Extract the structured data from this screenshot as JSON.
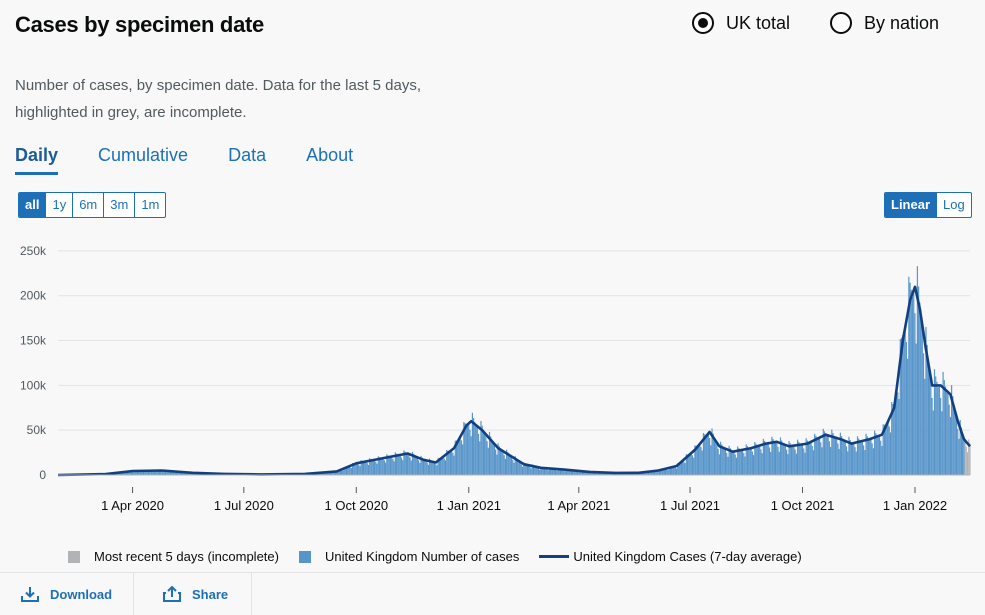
{
  "header": {
    "title": "Cases by specimen date"
  },
  "radios": [
    {
      "label": "UK total",
      "selected": true
    },
    {
      "label": "By nation",
      "selected": false
    }
  ],
  "description": "Number of cases, by specimen date. Data for the last 5 days, highlighted in grey, are incomplete.",
  "tabs": [
    "Daily",
    "Cumulative",
    "Data",
    "About"
  ],
  "range_buttons": [
    "all",
    "1y",
    "6m",
    "3m",
    "1m"
  ],
  "scale_buttons": [
    "Linear",
    "Log"
  ],
  "legend": {
    "incomplete": "Most recent 5 days (incomplete)",
    "bars": "United Kingdom Number of cases",
    "line": "United Kingdom Cases (7-day average)"
  },
  "footer": {
    "download": "Download",
    "share": "Share"
  },
  "colors": {
    "bars": "#5694ca",
    "line": "#12407f",
    "incomplete": "#b1b4b6",
    "accent": "#1d70b8"
  },
  "chart_data": {
    "type": "bar",
    "x_start": "2020-01-31",
    "x_end": "2022-02-15",
    "ylim": [
      0,
      270000
    ],
    "yticks": [
      0,
      50000,
      100000,
      150000,
      200000,
      250000
    ],
    "ytick_labels": [
      "0",
      "50k",
      "100k",
      "150k",
      "200k",
      "250k"
    ],
    "xtick_dates": [
      "2020-04-01",
      "2020-07-01",
      "2020-10-01",
      "2021-01-01",
      "2021-04-01",
      "2021-07-01",
      "2021-10-01",
      "2022-01-01"
    ],
    "xtick_labels": [
      "1 Apr 2020",
      "1 Jul 2020",
      "1 Oct 2020",
      "1 Jan 2021",
      "1 Apr 2021",
      "1 Jul 2021",
      "1 Oct 2021",
      "1 Jan 2022"
    ],
    "grid": true,
    "legend_position": "bottom",
    "series": [
      {
        "name": "United Kingdom Cases (7-day average)",
        "kind": "line",
        "points": [
          [
            "2020-01-31",
            0
          ],
          [
            "2020-03-10",
            1000
          ],
          [
            "2020-04-01",
            4500
          ],
          [
            "2020-04-25",
            5000
          ],
          [
            "2020-05-20",
            2500
          ],
          [
            "2020-06-15",
            1200
          ],
          [
            "2020-07-15",
            700
          ],
          [
            "2020-08-20",
            1200
          ],
          [
            "2020-09-15",
            4000
          ],
          [
            "2020-10-01",
            13000
          ],
          [
            "2020-10-20",
            18000
          ],
          [
            "2020-11-12",
            24000
          ],
          [
            "2020-11-25",
            17000
          ],
          [
            "2020-12-05",
            14000
          ],
          [
            "2020-12-20",
            30000
          ],
          [
            "2020-12-30",
            55000
          ],
          [
            "2021-01-03",
            60000
          ],
          [
            "2021-01-12",
            50000
          ],
          [
            "2021-01-25",
            30000
          ],
          [
            "2021-02-15",
            12000
          ],
          [
            "2021-03-01",
            8000
          ],
          [
            "2021-03-20",
            6000
          ],
          [
            "2021-04-10",
            3500
          ],
          [
            "2021-05-01",
            2300
          ],
          [
            "2021-05-20",
            2500
          ],
          [
            "2021-06-05",
            5000
          ],
          [
            "2021-06-20",
            10000
          ],
          [
            "2021-07-05",
            28000
          ],
          [
            "2021-07-17",
            48000
          ],
          [
            "2021-07-25",
            32000
          ],
          [
            "2021-08-05",
            26000
          ],
          [
            "2021-08-20",
            30000
          ],
          [
            "2021-09-01",
            35000
          ],
          [
            "2021-09-10",
            37000
          ],
          [
            "2021-09-20",
            32000
          ],
          [
            "2021-10-05",
            35000
          ],
          [
            "2021-10-20",
            45000
          ],
          [
            "2021-11-01",
            40000
          ],
          [
            "2021-11-10",
            35000
          ],
          [
            "2021-11-25",
            40000
          ],
          [
            "2021-12-05",
            45000
          ],
          [
            "2021-12-15",
            75000
          ],
          [
            "2021-12-22",
            150000
          ],
          [
            "2021-12-28",
            195000
          ],
          [
            "2022-01-01",
            210000
          ],
          [
            "2022-01-05",
            185000
          ],
          [
            "2022-01-10",
            140000
          ],
          [
            "2022-01-15",
            100000
          ],
          [
            "2022-01-22",
            100000
          ],
          [
            "2022-01-30",
            90000
          ],
          [
            "2022-02-05",
            60000
          ],
          [
            "2022-02-10",
            40000
          ],
          [
            "2022-02-15",
            32000
          ]
        ]
      },
      {
        "name": "United Kingdom Number of cases",
        "kind": "bar"
      },
      {
        "name": "Most recent 5 days (incomplete)",
        "kind": "bar",
        "days": 5
      }
    ]
  }
}
